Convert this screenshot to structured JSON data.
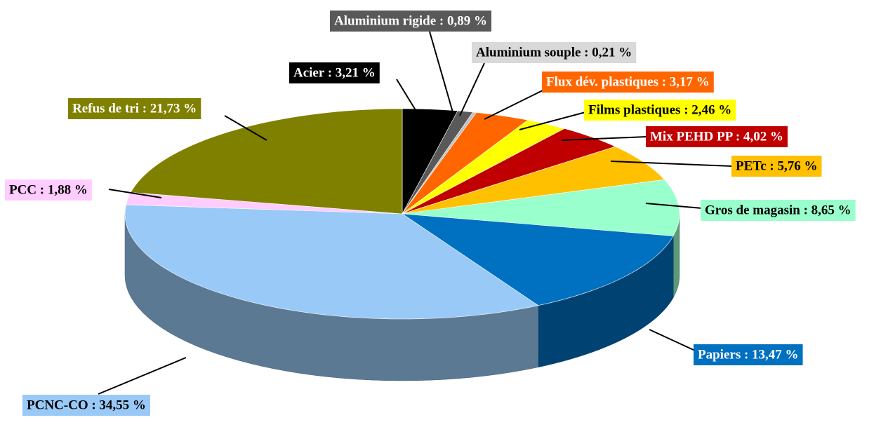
{
  "chart_data": {
    "type": "pie3d",
    "labels": [
      "Acier : 3,21 %",
      "Aluminium rigide : 0,89 %",
      "Aluminium souple : 0,21 %",
      "Flux dév. plastiques : 3,17 %",
      "Films plastiques : 2,46 %",
      "Mix PEHD PP : 4,02 %",
      "PETc : 5,76 %",
      "Gros de magasin : 8,65 %",
      "Papiers : 13,47 %",
      "PCNC-CO : 34,55 %",
      "PCC : 1,88 %",
      "Refus de tri : 21,73 %"
    ],
    "values": [
      3.21,
      0.89,
      0.21,
      3.17,
      2.46,
      4.02,
      5.76,
      8.65,
      13.47,
      34.55,
      1.88,
      21.73
    ],
    "colors": [
      "#000000",
      "#595959",
      "#bfbfbf",
      "#ff6600",
      "#ffff00",
      "#c00000",
      "#ffc000",
      "#99ffcc",
      "#0070c0",
      "#99c9f7",
      "#ffccff",
      "#808000"
    ]
  }
}
